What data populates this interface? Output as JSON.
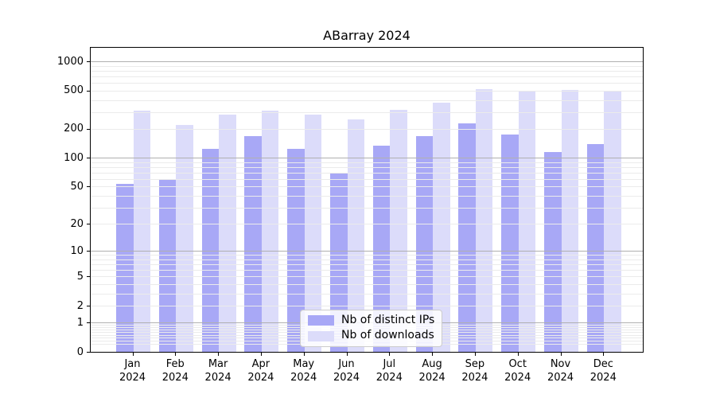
{
  "chart_data": {
    "type": "bar",
    "title": "ABarray 2024",
    "xlabel": "",
    "ylabel": "",
    "year": "2024",
    "categories": [
      "Jan",
      "Feb",
      "Mar",
      "Apr",
      "May",
      "Jun",
      "Jul",
      "Aug",
      "Sep",
      "Oct",
      "Nov",
      "Dec"
    ],
    "series": [
      {
        "name": "Nb of distinct IPs",
        "color": "#a8a8f6",
        "values": [
          53,
          60,
          125,
          170,
          125,
          70,
          135,
          170,
          227,
          175,
          115,
          140
        ]
      },
      {
        "name": "Nb of downloads",
        "color": "#dcdcfa",
        "values": [
          310,
          220,
          280,
          310,
          280,
          250,
          315,
          375,
          520,
          485,
          505,
          490
        ]
      }
    ],
    "yscale": "log1p",
    "yticks": [
      0,
      1,
      2,
      5,
      10,
      20,
      50,
      100,
      200,
      500,
      1000
    ],
    "ylim": [
      0,
      1450
    ],
    "grid": "on, drawn above bars; major lines at 1, 10, 100, 1000; minor log decades elsewhere",
    "legend_position": "lower center",
    "colors": {
      "grid_major": "#b0b0b0",
      "grid_minor": "#ebebeb",
      "spine": "#000000",
      "background": "#ffffff"
    }
  }
}
